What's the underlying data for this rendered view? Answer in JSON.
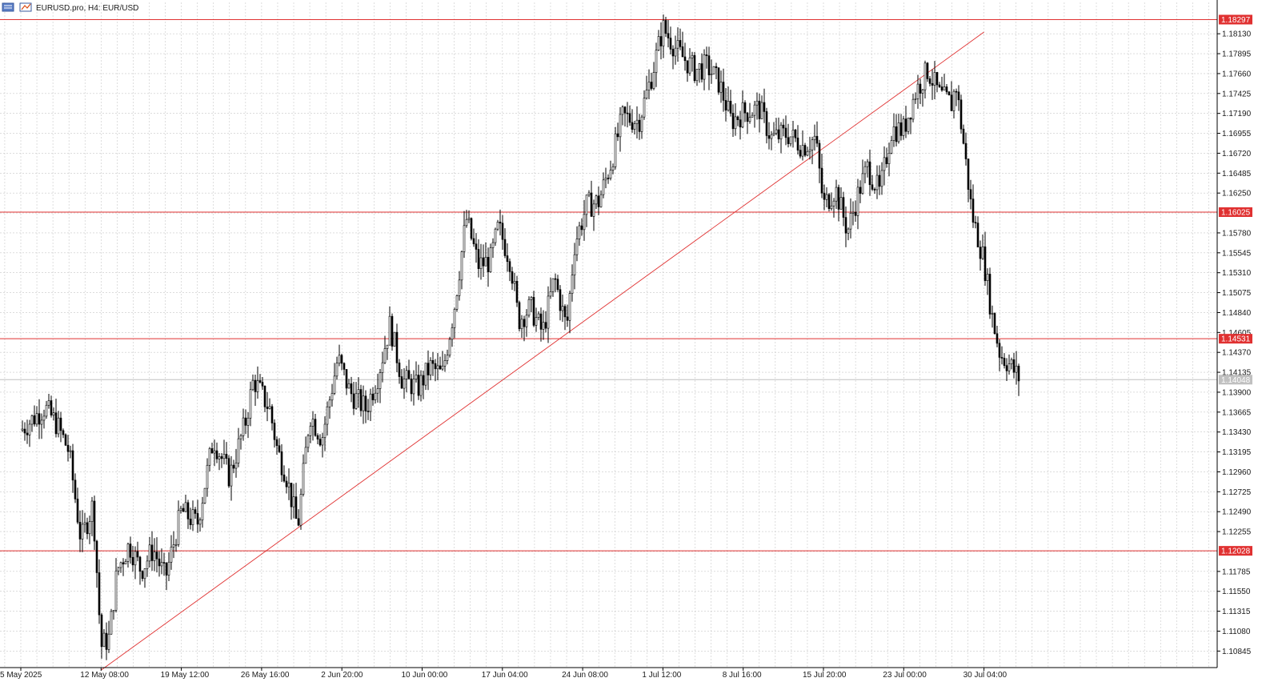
{
  "chart_header": {
    "title": "EURUSD.pro, H4:  EUR/USD"
  },
  "colors": {
    "background": "#ffffff",
    "grid": "#c8c8c8",
    "candle": "#000000",
    "level_line": "#e03131",
    "level_label_bg": "#e03131",
    "current_price_line": "#c0c0c0",
    "current_price_label_bg": "#c0c0c0"
  },
  "icons": [
    "chart-window-icon",
    "symbol-icon"
  ],
  "chart_data": {
    "type": "candlestick",
    "symbol": "EURUSD.pro",
    "timeframe": "H4",
    "ylim": [
      1.1065,
      1.185
    ],
    "x_tick_labels": [
      "5 May 2025",
      "12 May 08:00",
      "19 May 12:00",
      "26 May 16:00",
      "2 Jun 20:00",
      "10 Jun 00:00",
      "17 Jun 04:00",
      "24 Jun 08:00",
      "1 Jul 12:00",
      "8 Jul 16:00",
      "15 Jul 20:00",
      "23 Jul 00:00",
      "30 Jul 04:00"
    ],
    "y_tick_labels": [
      "1.18130",
      "1.17895",
      "1.17660",
      "1.17425",
      "1.17190",
      "1.16955",
      "1.16720",
      "1.16485",
      "1.16250",
      "1.15780",
      "1.15545",
      "1.15310",
      "1.15075",
      "1.14840",
      "1.14605",
      "1.14370",
      "1.14135",
      "1.13900",
      "1.13665",
      "1.13430",
      "1.13195",
      "1.12960",
      "1.12725",
      "1.12490",
      "1.12255",
      "1.11785",
      "1.11550",
      "1.11315",
      "1.11080",
      "1.10845"
    ],
    "horizontal_levels": [
      {
        "price": 1.18297,
        "label": "1.18297"
      },
      {
        "price": 1.16025,
        "label": "1.16025"
      },
      {
        "price": 1.14531,
        "label": "1.14531"
      },
      {
        "price": 1.12028,
        "label": "1.12028"
      }
    ],
    "current_price": {
      "price": 1.14048,
      "label": "1.14048"
    },
    "trendline": {
      "from": {
        "x_tick": 1,
        "price": 1.1062
      },
      "to": {
        "x_tick": 12,
        "price": 1.1815
      }
    },
    "price_path": [
      {
        "x_tick": 0.0,
        "price": 1.1345
      },
      {
        "x_tick": 0.3,
        "price": 1.1372
      },
      {
        "x_tick": 0.45,
        "price": 1.1352
      },
      {
        "x_tick": 0.6,
        "price": 1.132
      },
      {
        "x_tick": 0.75,
        "price": 1.1215
      },
      {
        "x_tick": 0.9,
        "price": 1.1258
      },
      {
        "x_tick": 1.0,
        "price": 1.109
      },
      {
        "x_tick": 1.1,
        "price": 1.11
      },
      {
        "x_tick": 1.2,
        "price": 1.118
      },
      {
        "x_tick": 1.35,
        "price": 1.121
      },
      {
        "x_tick": 1.5,
        "price": 1.118
      },
      {
        "x_tick": 1.65,
        "price": 1.1205
      },
      {
        "x_tick": 1.8,
        "price": 1.117
      },
      {
        "x_tick": 2.0,
        "price": 1.125
      },
      {
        "x_tick": 2.2,
        "price": 1.1235
      },
      {
        "x_tick": 2.4,
        "price": 1.1335
      },
      {
        "x_tick": 2.6,
        "price": 1.129
      },
      {
        "x_tick": 2.8,
        "price": 1.1355
      },
      {
        "x_tick": 2.9,
        "price": 1.1405
      },
      {
        "x_tick": 3.1,
        "price": 1.137
      },
      {
        "x_tick": 3.2,
        "price": 1.132
      },
      {
        "x_tick": 3.3,
        "price": 1.1295
      },
      {
        "x_tick": 3.45,
        "price": 1.123
      },
      {
        "x_tick": 3.6,
        "price": 1.1365
      },
      {
        "x_tick": 3.75,
        "price": 1.1335
      },
      {
        "x_tick": 3.95,
        "price": 1.143
      },
      {
        "x_tick": 4.1,
        "price": 1.139
      },
      {
        "x_tick": 4.3,
        "price": 1.137
      },
      {
        "x_tick": 4.45,
        "price": 1.141
      },
      {
        "x_tick": 4.6,
        "price": 1.147
      },
      {
        "x_tick": 4.75,
        "price": 1.1405
      },
      {
        "x_tick": 4.95,
        "price": 1.1395
      },
      {
        "x_tick": 5.1,
        "price": 1.142
      },
      {
        "x_tick": 5.25,
        "price": 1.141
      },
      {
        "x_tick": 5.4,
        "price": 1.149
      },
      {
        "x_tick": 5.55,
        "price": 1.1595
      },
      {
        "x_tick": 5.7,
        "price": 1.154
      },
      {
        "x_tick": 5.85,
        "price": 1.1545
      },
      {
        "x_tick": 5.95,
        "price": 1.1585
      },
      {
        "x_tick": 6.1,
        "price": 1.1545
      },
      {
        "x_tick": 6.2,
        "price": 1.1475
      },
      {
        "x_tick": 6.35,
        "price": 1.149
      },
      {
        "x_tick": 6.5,
        "price": 1.146
      },
      {
        "x_tick": 6.65,
        "price": 1.1525
      },
      {
        "x_tick": 6.8,
        "price": 1.1465
      },
      {
        "x_tick": 6.9,
        "price": 1.1565
      },
      {
        "x_tick": 7.05,
        "price": 1.161
      },
      {
        "x_tick": 7.2,
        "price": 1.1615
      },
      {
        "x_tick": 7.35,
        "price": 1.166
      },
      {
        "x_tick": 7.5,
        "price": 1.1715
      },
      {
        "x_tick": 7.7,
        "price": 1.171
      },
      {
        "x_tick": 7.85,
        "price": 1.176
      },
      {
        "x_tick": 8.0,
        "price": 1.182
      },
      {
        "x_tick": 8.2,
        "price": 1.179
      },
      {
        "x_tick": 8.4,
        "price": 1.177
      },
      {
        "x_tick": 8.55,
        "price": 1.1775
      },
      {
        "x_tick": 8.7,
        "price": 1.1755
      },
      {
        "x_tick": 8.85,
        "price": 1.171
      },
      {
        "x_tick": 9.0,
        "price": 1.172
      },
      {
        "x_tick": 9.2,
        "price": 1.1725
      },
      {
        "x_tick": 9.35,
        "price": 1.169
      },
      {
        "x_tick": 9.55,
        "price": 1.1695
      },
      {
        "x_tick": 9.75,
        "price": 1.168
      },
      {
        "x_tick": 9.9,
        "price": 1.169
      },
      {
        "x_tick": 10.0,
        "price": 1.161
      },
      {
        "x_tick": 10.15,
        "price": 1.163
      },
      {
        "x_tick": 10.3,
        "price": 1.158
      },
      {
        "x_tick": 10.45,
        "price": 1.163
      },
      {
        "x_tick": 10.55,
        "price": 1.1655
      },
      {
        "x_tick": 10.7,
        "price": 1.1625
      },
      {
        "x_tick": 10.85,
        "price": 1.17
      },
      {
        "x_tick": 11.0,
        "price": 1.17
      },
      {
        "x_tick": 11.15,
        "price": 1.1745
      },
      {
        "x_tick": 11.3,
        "price": 1.177
      },
      {
        "x_tick": 11.45,
        "price": 1.174
      },
      {
        "x_tick": 11.6,
        "price": 1.173
      },
      {
        "x_tick": 11.65,
        "price": 1.1755
      },
      {
        "x_tick": 11.75,
        "price": 1.168
      },
      {
        "x_tick": 11.85,
        "price": 1.16
      },
      {
        "x_tick": 12.0,
        "price": 1.1545
      },
      {
        "x_tick": 12.1,
        "price": 1.148
      },
      {
        "x_tick": 12.2,
        "price": 1.1435
      },
      {
        "x_tick": 12.3,
        "price": 1.1425
      },
      {
        "x_tick": 12.45,
        "price": 1.1405
      }
    ]
  }
}
